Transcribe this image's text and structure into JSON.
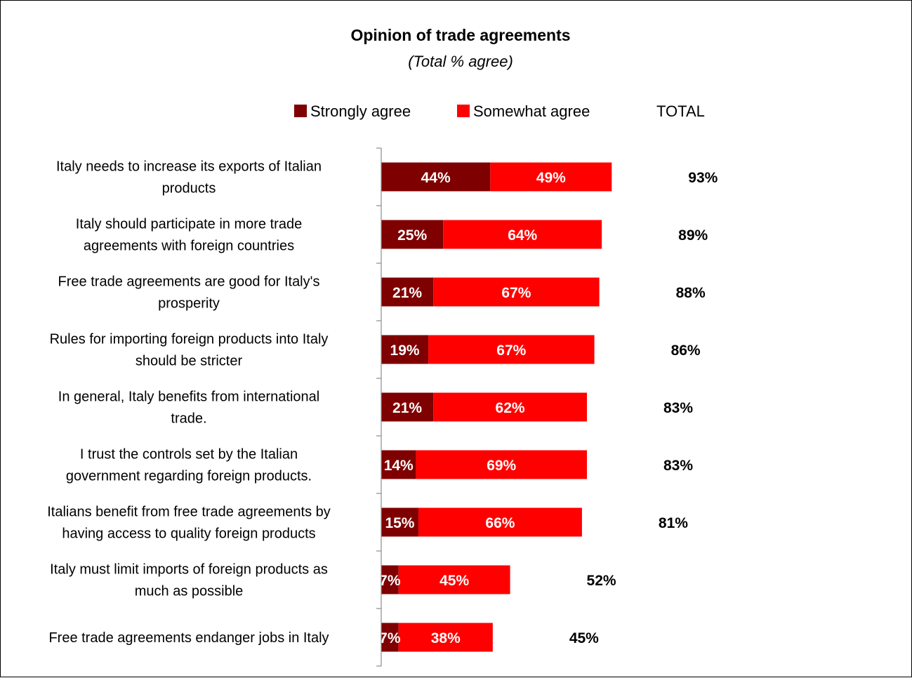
{
  "chart_data": {
    "type": "bar",
    "orientation": "horizontal",
    "stacked": true,
    "title": "Opinion of trade agreements",
    "subtitle": "(Total % agree)",
    "legend_position": "top",
    "categories": [
      [
        "Italy needs to increase its exports of Italian",
        "products"
      ],
      [
        "Italy should participate in more trade",
        "agreements with foreign countries"
      ],
      [
        "Free trade agreements are good for Italy's",
        "prosperity"
      ],
      [
        "Rules for importing foreign products into Italy",
        "should be stricter"
      ],
      [
        "In general, Italy benefits from international",
        "trade."
      ],
      [
        "I trust the controls set by the Italian",
        "government regarding foreign products."
      ],
      [
        "Italians benefit from free trade agreements by",
        "having access to quality foreign products"
      ],
      [
        "Italy must limit imports of foreign products as",
        "much as possible"
      ],
      [
        "Free trade agreements endanger jobs in Italy"
      ]
    ],
    "series": [
      {
        "name": "Strongly agree",
        "color": "#7f0000",
        "values": [
          44,
          25,
          21,
          19,
          21,
          14,
          15,
          7,
          7
        ]
      },
      {
        "name": "Somewhat agree",
        "color": "#ff0000",
        "values": [
          49,
          64,
          67,
          67,
          62,
          69,
          66,
          45,
          38
        ]
      },
      {
        "name": "TOTAL",
        "color": "none",
        "values": [
          93,
          89,
          88,
          86,
          83,
          83,
          81,
          52,
          45
        ]
      }
    ],
    "value_suffix": "%",
    "grid": false
  }
}
